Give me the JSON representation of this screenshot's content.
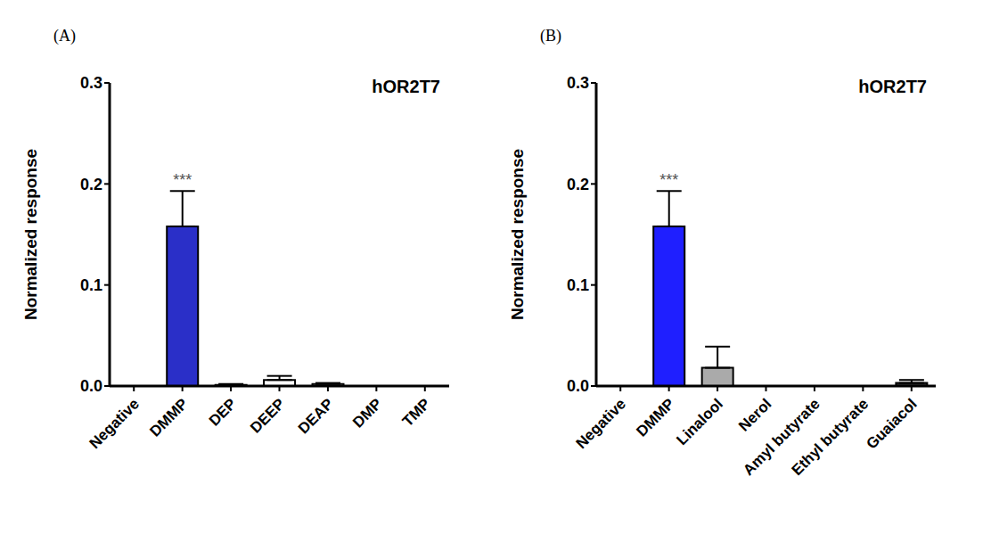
{
  "chart_data": [
    {
      "type": "bar",
      "panel_label": "(A)",
      "title": "hOR2T7",
      "y_label": "Normalized response",
      "categories": [
        "Negative",
        "DMMP",
        "DEP",
        "DEEP",
        "DEAP",
        "DMP",
        "TMP"
      ],
      "values": [
        0,
        0.158,
        0.001,
        0.006,
        0.002,
        0,
        0
      ],
      "errors": [
        0.015,
        0.035,
        0.001,
        0.004,
        0.001,
        0,
        0
      ],
      "colors": [
        "#ffffff",
        "#2a2fc8",
        "#ffffff",
        "#ffffff",
        "#ffffff",
        "#ffffff",
        "#ffffff"
      ],
      "ylim": [
        0,
        0.3
      ],
      "yticks": [
        {
          "value": 0,
          "label": "0.0"
        },
        {
          "value": 0.1,
          "label": "0.1"
        },
        {
          "value": 0.2,
          "label": "0.2"
        },
        {
          "value": 0.3,
          "label": "0.3"
        }
      ],
      "annotations": [
        {
          "category": "DMMP",
          "text": "***"
        }
      ]
    },
    {
      "type": "bar",
      "panel_label": "(B)",
      "title": "hOR2T7",
      "y_label": "Normalized response",
      "categories": [
        "Negative",
        "DMMP",
        "Linalool",
        "Nerol",
        "Amyl butyrate",
        "Ethyl butyrate",
        "Guaiacol"
      ],
      "values": [
        0,
        0.158,
        0.018,
        0,
        0,
        0,
        0.003
      ],
      "errors": [
        0,
        0.035,
        0.021,
        0,
        0,
        0,
        0.003
      ],
      "colors": [
        "#ffffff",
        "#1f1fff",
        "#aaaaaa",
        "#ffffff",
        "#ffffff",
        "#ffffff",
        "#333333"
      ],
      "ylim": [
        0,
        0.3
      ],
      "yticks": [
        {
          "value": 0,
          "label": "0.0"
        },
        {
          "value": 0.1,
          "label": "0.1"
        },
        {
          "value": 0.2,
          "label": "0.2"
        },
        {
          "value": 0.3,
          "label": "0.3"
        }
      ],
      "annotations": [
        {
          "category": "DMMP",
          "text": "***"
        }
      ]
    }
  ]
}
